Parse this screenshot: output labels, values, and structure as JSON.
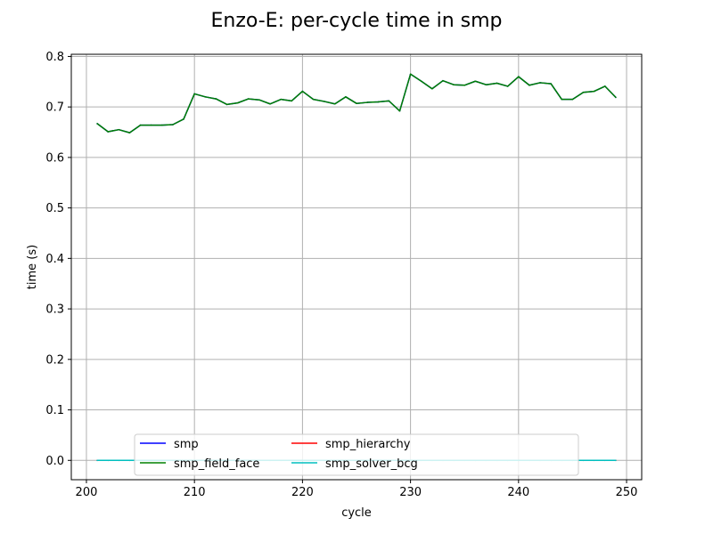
{
  "chart_data": {
    "type": "line",
    "title": "Enzo-E: per-cycle time in smp",
    "xlabel": "cycle",
    "ylabel": "time (s)",
    "xlim": [
      198.6,
      251.4
    ],
    "ylim": [
      -0.0383,
      0.8043
    ],
    "xticks": [
      200,
      210,
      220,
      230,
      240,
      250
    ],
    "yticks": [
      0.0,
      0.1,
      0.2,
      0.3,
      0.4,
      0.5,
      0.6,
      0.7,
      0.8
    ],
    "xtick_labels": [
      "200",
      "210",
      "220",
      "230",
      "240",
      "250"
    ],
    "ytick_labels": [
      "0.0",
      "0.1",
      "0.2",
      "0.3",
      "0.4",
      "0.5",
      "0.6",
      "0.7",
      "0.8"
    ],
    "grid": true,
    "legend": {
      "placement": "bottom-center",
      "columns": 3
    },
    "x": [
      201,
      202,
      203,
      204,
      205,
      206,
      207,
      208,
      209,
      210,
      211,
      212,
      213,
      214,
      215,
      216,
      217,
      218,
      219,
      220,
      221,
      222,
      223,
      224,
      225,
      226,
      227,
      228,
      229,
      230,
      231,
      232,
      233,
      234,
      235,
      236,
      237,
      238,
      239,
      240,
      241,
      242,
      243,
      244,
      245,
      246,
      247,
      248,
      249
    ],
    "series": [
      {
        "name": "smp",
        "color": "#0000ff",
        "values": [
          0.667,
          0.651,
          0.655,
          0.649,
          0.664,
          0.664,
          0.664,
          0.665,
          0.676,
          0.726,
          0.72,
          0.716,
          0.705,
          0.708,
          0.716,
          0.714,
          0.706,
          0.715,
          0.712,
          0.731,
          0.715,
          0.711,
          0.706,
          0.72,
          0.707,
          0.709,
          0.71,
          0.712,
          0.692,
          0.765,
          0.751,
          0.736,
          0.752,
          0.744,
          0.743,
          0.751,
          0.744,
          0.747,
          0.741,
          0.76,
          0.743,
          0.748,
          0.746,
          0.715,
          0.715,
          0.729,
          0.731,
          0.741,
          0.719
        ]
      },
      {
        "name": "smp_field_face",
        "color": "#008000",
        "values": [
          0.667,
          0.651,
          0.655,
          0.649,
          0.664,
          0.664,
          0.664,
          0.665,
          0.676,
          0.726,
          0.72,
          0.716,
          0.705,
          0.708,
          0.716,
          0.714,
          0.706,
          0.715,
          0.712,
          0.731,
          0.715,
          0.711,
          0.706,
          0.72,
          0.707,
          0.709,
          0.71,
          0.712,
          0.692,
          0.765,
          0.751,
          0.736,
          0.752,
          0.744,
          0.743,
          0.751,
          0.744,
          0.747,
          0.741,
          0.76,
          0.743,
          0.748,
          0.746,
          0.715,
          0.715,
          0.729,
          0.731,
          0.741,
          0.719
        ]
      },
      {
        "name": "smp_hierarchy",
        "color": "#ff0000",
        "values": [
          0.0,
          0.0,
          0.0,
          0.0,
          0.0,
          0.0,
          0.0,
          0.0,
          0.0,
          0.0,
          0.0,
          0.0,
          0.0,
          0.0,
          0.0,
          0.0,
          0.0,
          0.0,
          0.0,
          0.0,
          0.0,
          0.0,
          0.0,
          0.0,
          0.0,
          0.0,
          0.0,
          0.0,
          0.0,
          0.0,
          0.0,
          0.0,
          0.0,
          0.0,
          0.0,
          0.0,
          0.0,
          0.0,
          0.0,
          0.0,
          0.0,
          0.0,
          0.0,
          0.0,
          0.0,
          0.0,
          0.0,
          0.0,
          0.0
        ]
      },
      {
        "name": "smp_solver_bcg",
        "color": "#00bfbf",
        "values": [
          0.0,
          0.0,
          0.0,
          0.0,
          0.0,
          0.0,
          0.0,
          0.0,
          0.0,
          0.0,
          0.0,
          0.0,
          0.0,
          0.0,
          0.0,
          0.0,
          0.0,
          0.0,
          0.0,
          0.0,
          0.0,
          0.0,
          0.0,
          0.0,
          0.0,
          0.0,
          0.0,
          0.0,
          0.0,
          0.0,
          0.0,
          0.0,
          0.0,
          0.0,
          0.0,
          0.0,
          0.0,
          0.0,
          0.0,
          0.0,
          0.0,
          0.0,
          0.0,
          0.0,
          0.0,
          0.0,
          0.0,
          0.0,
          0.0
        ]
      }
    ]
  }
}
